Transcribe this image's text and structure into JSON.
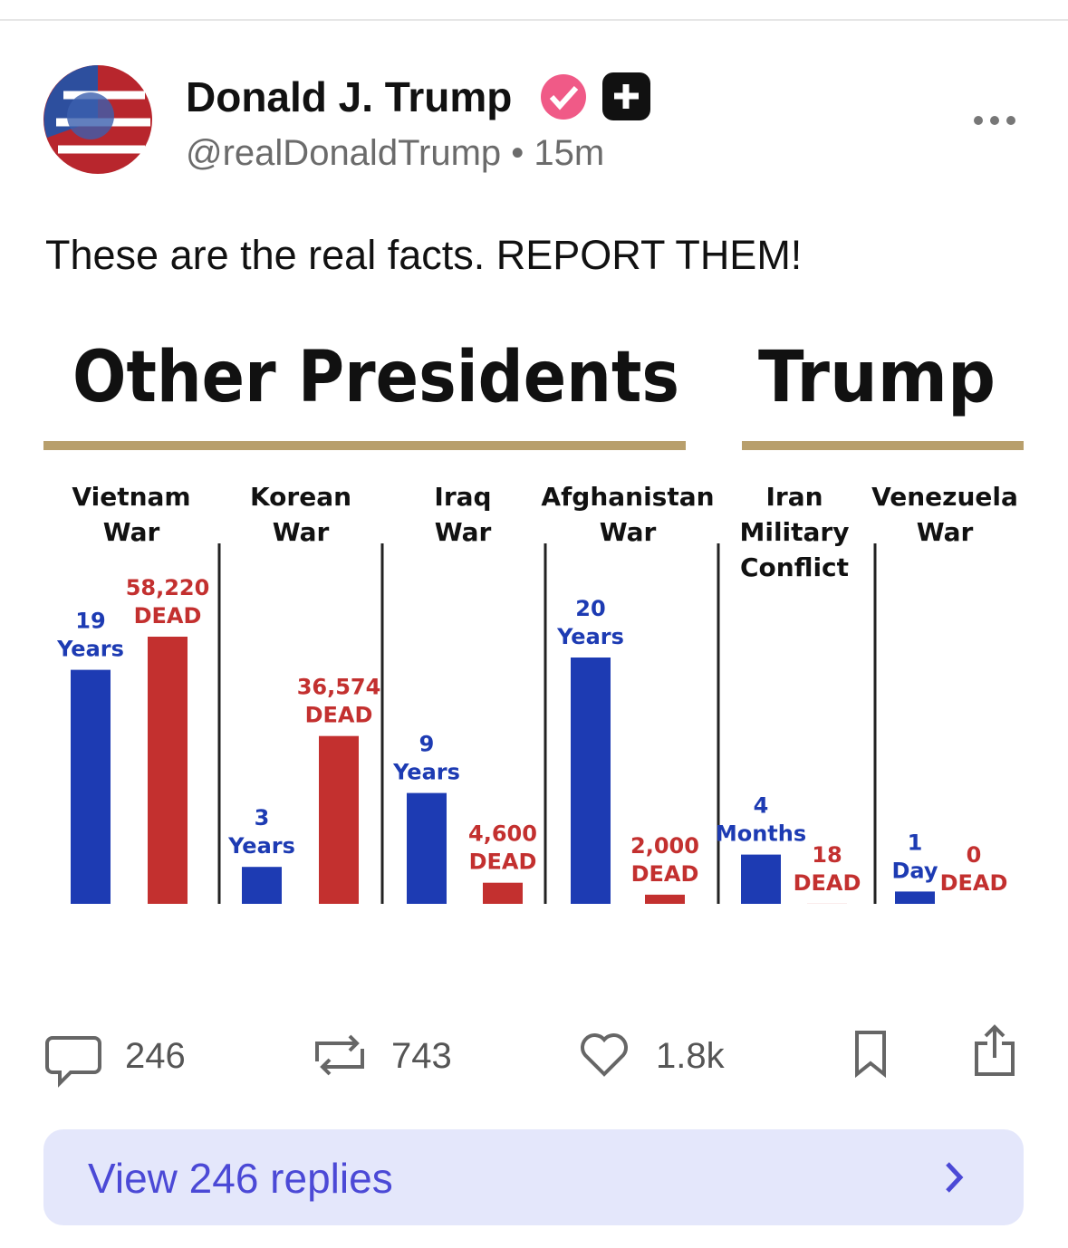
{
  "header": {
    "name": "Donald J. Trump",
    "meta": "@realDonaldTrump • 15m"
  },
  "post": {
    "text": "These are the real facts. REPORT THEM!"
  },
  "chart_data": {
    "type": "bar",
    "group_titles": [
      "Other Presidents",
      "Trump"
    ],
    "categories": [
      [
        "Vietnam",
        "War"
      ],
      [
        "Korean",
        "War"
      ],
      [
        "Iraq",
        "War"
      ],
      [
        "Afghanistan",
        "War"
      ],
      [
        "Iran",
        "Military",
        "Conflict"
      ],
      [
        "Venezuela",
        "War"
      ]
    ],
    "series": [
      {
        "color": "#1d3bb3",
        "values": [
          19,
          3,
          9,
          20,
          4,
          1
        ],
        "units": [
          "Years",
          "Years",
          "Years",
          "Years",
          "Months",
          "Day"
        ]
      },
      {
        "color": "#c3302f",
        "values": [
          58220,
          36574,
          4600,
          2000,
          18,
          0
        ],
        "value_labels": [
          "58,220",
          "36,574",
          "4,600",
          "2,000",
          "18",
          "0"
        ],
        "units": [
          "DEAD",
          "DEAD",
          "DEAD",
          "DEAD",
          "DEAD",
          "DEAD"
        ]
      }
    ]
  },
  "actions": {
    "replies": 246,
    "reposts": 743,
    "likes": "1.8k"
  },
  "footer": {
    "button": "View 246 replies"
  }
}
